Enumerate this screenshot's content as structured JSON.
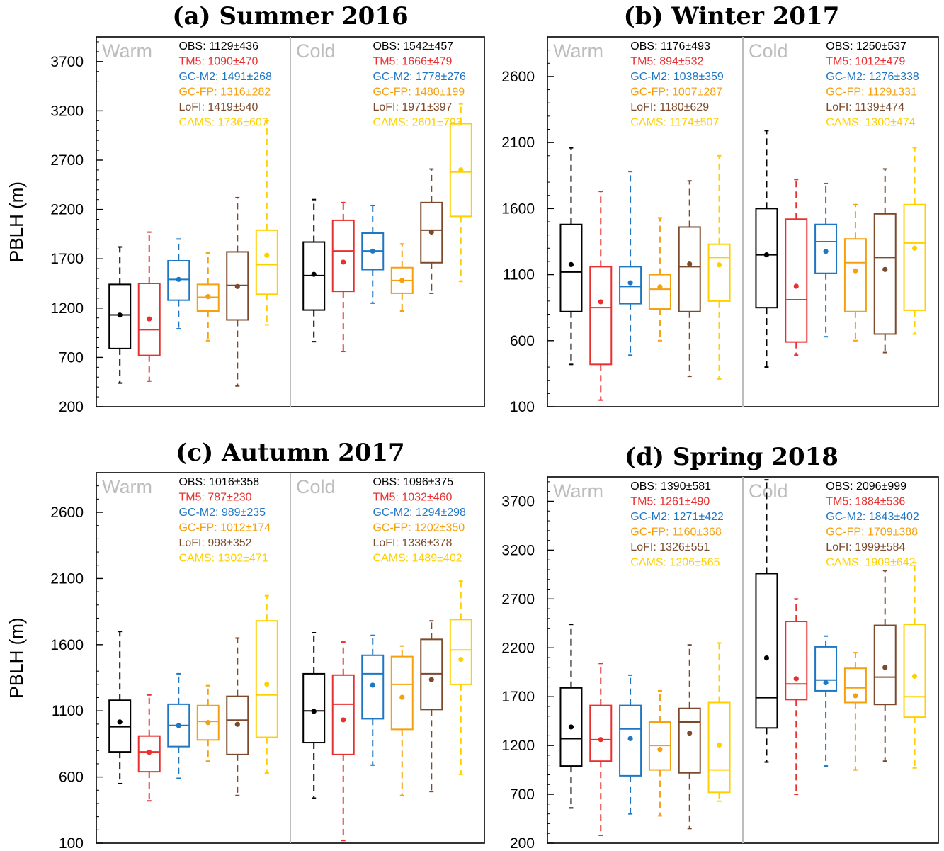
{
  "colors": {
    "OBS": "#000000",
    "TM5": "#e8302f",
    "GC-M2": "#1f77c4",
    "GC-FP": "#f5a00c",
    "LoFI": "#7b4a2c",
    "CAMS": "#ffd000",
    "divider": "#bdbdbd"
  },
  "chart_data": [
    {
      "type": "box",
      "title": "(a) Summer 2016",
      "ylabel": "PBLH (m)",
      "ylim": [
        200,
        3950
      ],
      "yticks": [
        200,
        700,
        1200,
        1700,
        2200,
        2700,
        3200,
        3700
      ],
      "groups": [
        {
          "name": "Warm",
          "stats": [
            {
              "model": "OBS",
              "text": "OBS: 1129±436"
            },
            {
              "model": "TM5",
              "text": "TM5: 1090±470"
            },
            {
              "model": "GC-M2",
              "text": "GC-M2: 1491±268"
            },
            {
              "model": "GC-FP",
              "text": "GC-FP: 1316±282"
            },
            {
              "model": "LoFI",
              "text": "LoFI: 1419±540"
            },
            {
              "model": "CAMS",
              "text": "CAMS: 1736±607"
            }
          ],
          "boxes": [
            {
              "model": "OBS",
              "wlo": 440,
              "q1": 790,
              "med": 1130,
              "q3": 1440,
              "whi": 1820,
              "mean": 1129
            },
            {
              "model": "TM5",
              "wlo": 460,
              "q1": 720,
              "med": 980,
              "q3": 1450,
              "whi": 1970,
              "mean": 1090
            },
            {
              "model": "GC-M2",
              "wlo": 990,
              "q1": 1280,
              "med": 1490,
              "q3": 1680,
              "whi": 1900,
              "mean": 1491
            },
            {
              "model": "GC-FP",
              "wlo": 870,
              "q1": 1170,
              "med": 1310,
              "q3": 1440,
              "whi": 1760,
              "mean": 1316
            },
            {
              "model": "LoFI",
              "wlo": 410,
              "q1": 1080,
              "med": 1430,
              "q3": 1770,
              "whi": 2320,
              "mean": 1419
            },
            {
              "model": "CAMS",
              "wlo": 1030,
              "q1": 1340,
              "med": 1640,
              "q3": 1990,
              "whi": 3100,
              "mean": 1736
            }
          ]
        },
        {
          "name": "Cold",
          "stats": [
            {
              "model": "OBS",
              "text": "OBS: 1542±457"
            },
            {
              "model": "TM5",
              "text": "TM5: 1666±479"
            },
            {
              "model": "GC-M2",
              "text": "GC-M2: 1778±276"
            },
            {
              "model": "GC-FP",
              "text": "GC-FP: 1480±199"
            },
            {
              "model": "LoFI",
              "text": "LoFI: 1971±397"
            },
            {
              "model": "CAMS",
              "text": "CAMS: 2601±793"
            }
          ],
          "boxes": [
            {
              "model": "OBS",
              "wlo": 860,
              "q1": 1180,
              "med": 1530,
              "q3": 1870,
              "whi": 2300,
              "mean": 1542
            },
            {
              "model": "TM5",
              "wlo": 760,
              "q1": 1370,
              "med": 1780,
              "q3": 2090,
              "whi": 2270,
              "mean": 1666
            },
            {
              "model": "GC-M2",
              "wlo": 1250,
              "q1": 1590,
              "med": 1780,
              "q3": 1960,
              "whi": 2240,
              "mean": 1778
            },
            {
              "model": "GC-FP",
              "wlo": 1170,
              "q1": 1350,
              "med": 1480,
              "q3": 1610,
              "whi": 1850,
              "mean": 1480
            },
            {
              "model": "LoFI",
              "wlo": 1350,
              "q1": 1660,
              "med": 1990,
              "q3": 2270,
              "whi": 2610,
              "mean": 1971
            },
            {
              "model": "CAMS",
              "wlo": 1470,
              "q1": 2130,
              "med": 2580,
              "q3": 3070,
              "whi": 3270,
              "mean": 2601
            }
          ]
        }
      ]
    },
    {
      "type": "box",
      "title": "(b) Winter 2017",
      "ylabel": "",
      "ylim": [
        100,
        2900
      ],
      "yticks": [
        100,
        600,
        1100,
        1600,
        2100,
        2600
      ],
      "groups": [
        {
          "name": "Warm",
          "stats": [
            {
              "model": "OBS",
              "text": "OBS: 1176±493"
            },
            {
              "model": "TM5",
              "text": "TM5: 894±532"
            },
            {
              "model": "GC-M2",
              "text": "GC-M2: 1038±359"
            },
            {
              "model": "GC-FP",
              "text": "GC-FP: 1007±287"
            },
            {
              "model": "LoFI",
              "text": "LoFI: 1180±629"
            },
            {
              "model": "CAMS",
              "text": "CAMS: 1174±507"
            }
          ],
          "boxes": [
            {
              "model": "OBS",
              "wlo": 420,
              "q1": 820,
              "med": 1120,
              "q3": 1480,
              "whi": 2060,
              "mean": 1176
            },
            {
              "model": "TM5",
              "wlo": 150,
              "q1": 420,
              "med": 850,
              "q3": 1160,
              "whi": 1730,
              "mean": 894
            },
            {
              "model": "GC-M2",
              "wlo": 490,
              "q1": 880,
              "med": 1010,
              "q3": 1160,
              "whi": 1880,
              "mean": 1038
            },
            {
              "model": "GC-FP",
              "wlo": 600,
              "q1": 840,
              "med": 990,
              "q3": 1100,
              "whi": 1530,
              "mean": 1007
            },
            {
              "model": "LoFI",
              "wlo": 330,
              "q1": 820,
              "med": 1160,
              "q3": 1460,
              "whi": 1810,
              "mean": 1180
            },
            {
              "model": "CAMS",
              "wlo": 310,
              "q1": 900,
              "med": 1230,
              "q3": 1330,
              "whi": 2000,
              "mean": 1174
            }
          ]
        },
        {
          "name": "Cold",
          "stats": [
            {
              "model": "OBS",
              "text": "OBS: 1250±537"
            },
            {
              "model": "TM5",
              "text": "TM5: 1012±479"
            },
            {
              "model": "GC-M2",
              "text": "GC-M2: 1276±338"
            },
            {
              "model": "GC-FP",
              "text": "GC-FP: 1129±331"
            },
            {
              "model": "LoFI",
              "text": "LoFI: 1139±474"
            },
            {
              "model": "CAMS",
              "text": "CAMS: 1300±474"
            }
          ],
          "boxes": [
            {
              "model": "OBS",
              "wlo": 400,
              "q1": 850,
              "med": 1250,
              "q3": 1600,
              "whi": 2190,
              "mean": 1250
            },
            {
              "model": "TM5",
              "wlo": 490,
              "q1": 590,
              "med": 910,
              "q3": 1520,
              "whi": 1820,
              "mean": 1012
            },
            {
              "model": "GC-M2",
              "wlo": 630,
              "q1": 1110,
              "med": 1350,
              "q3": 1480,
              "whi": 1790,
              "mean": 1276
            },
            {
              "model": "GC-FP",
              "wlo": 600,
              "q1": 820,
              "med": 1190,
              "q3": 1370,
              "whi": 1630,
              "mean": 1129
            },
            {
              "model": "LoFI",
              "wlo": 510,
              "q1": 650,
              "med": 1230,
              "q3": 1560,
              "whi": 1900,
              "mean": 1139
            },
            {
              "model": "CAMS",
              "wlo": 650,
              "q1": 830,
              "med": 1340,
              "q3": 1630,
              "whi": 2060,
              "mean": 1300
            }
          ]
        }
      ]
    },
    {
      "type": "box",
      "title": "(c) Autumn  2017",
      "ylabel": "PBLH (m)",
      "ylim": [
        100,
        2900
      ],
      "yticks": [
        100,
        600,
        1100,
        1600,
        2100,
        2600
      ],
      "groups": [
        {
          "name": "Warm",
          "stats": [
            {
              "model": "OBS",
              "text": "OBS: 1016±358"
            },
            {
              "model": "TM5",
              "text": "TM5: 787±230"
            },
            {
              "model": "GC-M2",
              "text": "GC-M2: 989±235"
            },
            {
              "model": "GC-FP",
              "text": "GC-FP: 1012±174"
            },
            {
              "model": "LoFI",
              "text": "LoFI: 998±352"
            },
            {
              "model": "CAMS",
              "text": "CAMS: 1302±471"
            }
          ],
          "boxes": [
            {
              "model": "OBS",
              "wlo": 550,
              "q1": 790,
              "med": 980,
              "q3": 1180,
              "whi": 1700,
              "mean": 1016
            },
            {
              "model": "TM5",
              "wlo": 420,
              "q1": 640,
              "med": 790,
              "q3": 910,
              "whi": 1220,
              "mean": 787
            },
            {
              "model": "GC-M2",
              "wlo": 590,
              "q1": 830,
              "med": 990,
              "q3": 1150,
              "whi": 1380,
              "mean": 989
            },
            {
              "model": "GC-FP",
              "wlo": 720,
              "q1": 880,
              "med": 1020,
              "q3": 1140,
              "whi": 1290,
              "mean": 1012
            },
            {
              "model": "LoFI",
              "wlo": 460,
              "q1": 770,
              "med": 1030,
              "q3": 1210,
              "whi": 1650,
              "mean": 998
            },
            {
              "model": "CAMS",
              "wlo": 630,
              "q1": 900,
              "med": 1220,
              "q3": 1780,
              "whi": 1970,
              "mean": 1302
            }
          ]
        },
        {
          "name": "Cold",
          "stats": [
            {
              "model": "OBS",
              "text": "OBS: 1096±375"
            },
            {
              "model": "TM5",
              "text": "TM5: 1032±460"
            },
            {
              "model": "GC-M2",
              "text": "GC-M2: 1294±298"
            },
            {
              "model": "GC-FP",
              "text": "GC-FP: 1202±350"
            },
            {
              "model": "LoFI",
              "text": "LoFI: 1336±378"
            },
            {
              "model": "CAMS",
              "text": "CAMS: 1489±402"
            }
          ],
          "boxes": [
            {
              "model": "OBS",
              "wlo": 440,
              "q1": 860,
              "med": 1100,
              "q3": 1380,
              "whi": 1690,
              "mean": 1096
            },
            {
              "model": "TM5",
              "wlo": 120,
              "q1": 770,
              "med": 1150,
              "q3": 1370,
              "whi": 1620,
              "mean": 1032
            },
            {
              "model": "GC-M2",
              "wlo": 690,
              "q1": 1040,
              "med": 1380,
              "q3": 1520,
              "whi": 1670,
              "mean": 1294
            },
            {
              "model": "GC-FP",
              "wlo": 460,
              "q1": 960,
              "med": 1300,
              "q3": 1510,
              "whi": 1590,
              "mean": 1202
            },
            {
              "model": "LoFI",
              "wlo": 490,
              "q1": 1110,
              "med": 1380,
              "q3": 1640,
              "whi": 1780,
              "mean": 1336
            },
            {
              "model": "CAMS",
              "wlo": 620,
              "q1": 1300,
              "med": 1560,
              "q3": 1790,
              "whi": 2080,
              "mean": 1489
            }
          ]
        }
      ]
    },
    {
      "type": "box",
      "title": "(d) Spring 2018",
      "ylabel": "",
      "ylim": [
        200,
        3950
      ],
      "yticks": [
        200,
        700,
        1200,
        1700,
        2200,
        2700,
        3200,
        3700
      ],
      "groups": [
        {
          "name": "Warm",
          "stats": [
            {
              "model": "OBS",
              "text": "OBS: 1390±581"
            },
            {
              "model": "TM5",
              "text": "TM5: 1261±490"
            },
            {
              "model": "GC-M2",
              "text": "GC-M2: 1271±422"
            },
            {
              "model": "GC-FP",
              "text": "GC-FP: 1160±368"
            },
            {
              "model": "LoFI",
              "text": "LoFI: 1326±551"
            },
            {
              "model": "CAMS",
              "text": "CAMS: 1206±565"
            }
          ],
          "boxes": [
            {
              "model": "OBS",
              "wlo": 560,
              "q1": 990,
              "med": 1270,
              "q3": 1790,
              "whi": 2440,
              "mean": 1390
            },
            {
              "model": "TM5",
              "wlo": 280,
              "q1": 1040,
              "med": 1260,
              "q3": 1610,
              "whi": 2040,
              "mean": 1261
            },
            {
              "model": "GC-M2",
              "wlo": 500,
              "q1": 890,
              "med": 1370,
              "q3": 1610,
              "whi": 1920,
              "mean": 1271
            },
            {
              "model": "GC-FP",
              "wlo": 480,
              "q1": 950,
              "med": 1200,
              "q3": 1440,
              "whi": 1760,
              "mean": 1160
            },
            {
              "model": "LoFI",
              "wlo": 350,
              "q1": 920,
              "med": 1440,
              "q3": 1580,
              "whi": 2230,
              "mean": 1326
            },
            {
              "model": "CAMS",
              "wlo": 630,
              "q1": 720,
              "med": 950,
              "q3": 1640,
              "whi": 2250,
              "mean": 1206
            }
          ]
        },
        {
          "name": "Cold",
          "stats": [
            {
              "model": "OBS",
              "text": "OBS: 2096±999"
            },
            {
              "model": "TM5",
              "text": "TM5: 1884±536"
            },
            {
              "model": "GC-M2",
              "text": "GC-M2: 1843±402"
            },
            {
              "model": "GC-FP",
              "text": "GC-FP: 1709±388"
            },
            {
              "model": "LoFI",
              "text": "LoFI: 1999±584"
            },
            {
              "model": "CAMS",
              "text": "CAMS: 1909±642"
            }
          ],
          "boxes": [
            {
              "model": "OBS",
              "wlo": 1030,
              "q1": 1380,
              "med": 1690,
              "q3": 2960,
              "whi": 3920,
              "mean": 2096
            },
            {
              "model": "TM5",
              "wlo": 700,
              "q1": 1670,
              "med": 1830,
              "q3": 2470,
              "whi": 2700,
              "mean": 1884
            },
            {
              "model": "GC-M2",
              "wlo": 990,
              "q1": 1760,
              "med": 1870,
              "q3": 2210,
              "whi": 2320,
              "mean": 1843
            },
            {
              "model": "GC-FP",
              "wlo": 950,
              "q1": 1640,
              "med": 1790,
              "q3": 1990,
              "whi": 2150,
              "mean": 1709
            },
            {
              "model": "LoFI",
              "wlo": 1040,
              "q1": 1620,
              "med": 1900,
              "q3": 2430,
              "whi": 2990,
              "mean": 1999
            },
            {
              "model": "CAMS",
              "wlo": 970,
              "q1": 1490,
              "med": 1700,
              "q3": 2440,
              "whi": 3070,
              "mean": 1909
            }
          ]
        }
      ]
    }
  ]
}
